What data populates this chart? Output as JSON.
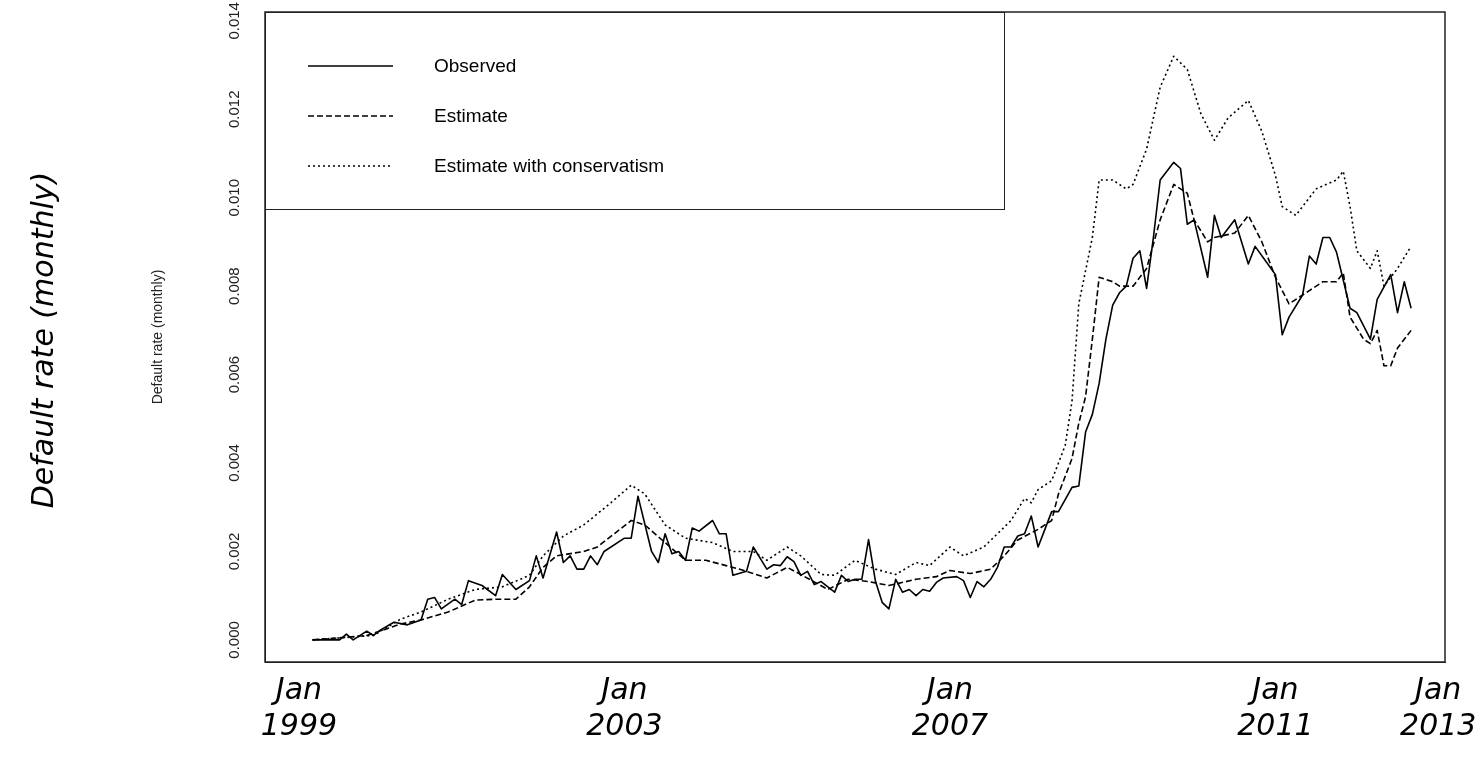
{
  "chart_data": {
    "type": "line",
    "ylabel": "Default rate (monthly)",
    "annotations": [
      "Default rate (monthly)"
    ],
    "xlim": [
      "1998-08",
      "2013-02"
    ],
    "xticks": [
      {
        "value": "1999-01",
        "label": "Jan 1999"
      },
      {
        "value": "2003-01",
        "label": "Jan 2003"
      },
      {
        "value": "2007-01",
        "label": "Jan 2007"
      },
      {
        "value": "2011-01",
        "label": "Jan 2011"
      },
      {
        "value": "2013-01",
        "label": "Jan 2013"
      }
    ],
    "ylim": [
      -0.0005,
      0.0142
    ],
    "yticks": [
      {
        "value": 0,
        "label": "0.000"
      },
      {
        "value": 0.002,
        "label": "0.002"
      },
      {
        "value": 0.004,
        "label": "0.004"
      },
      {
        "value": 0.006,
        "label": "0.006"
      },
      {
        "value": 0.008,
        "label": "0.008"
      },
      {
        "value": 0.01,
        "label": "0.010"
      },
      {
        "value": 0.012,
        "label": "0.012"
      },
      {
        "value": 0.014,
        "label": "0.014"
      }
    ],
    "grid": false,
    "legend": "top left",
    "series": [
      {
        "name": "Observed",
        "color": "#000000",
        "line_style": "solid",
        "x": [
          "1999-03",
          "1999-07",
          "1999-08",
          "1999-09",
          "1999-11",
          "1999-12",
          "2000-01",
          "2000-03",
          "2000-05",
          "2000-07",
          "2000-08",
          "2000-09",
          "2000-10",
          "2000-12",
          "2001-01",
          "2001-02",
          "2001-04",
          "2001-06",
          "2001-07",
          "2001-09",
          "2001-11",
          "2001-12",
          "2002-01",
          "2002-03",
          "2002-04",
          "2002-05",
          "2002-06",
          "2002-07",
          "2002-08",
          "2002-09",
          "2002-10",
          "2003-01",
          "2003-02",
          "2003-03",
          "2003-05",
          "2003-06",
          "2003-07",
          "2003-08",
          "2003-09",
          "2003-10",
          "2003-11",
          "2003-12",
          "2004-02",
          "2004-03",
          "2004-04",
          "2004-05",
          "2004-07",
          "2004-08",
          "2004-10",
          "2004-11",
          "2004-12",
          "2005-01",
          "2005-02",
          "2005-03",
          "2005-04",
          "2005-05",
          "2005-06",
          "2005-08",
          "2005-09",
          "2005-10",
          "2005-11",
          "2005-12",
          "2006-01",
          "2006-02",
          "2006-03",
          "2006-04",
          "2006-05",
          "2006-06",
          "2006-07",
          "2006-08",
          "2006-09",
          "2006-10",
          "2006-11",
          "2006-12",
          "2007-02",
          "2007-03",
          "2007-04",
          "2007-05",
          "2007-06",
          "2007-07",
          "2007-08",
          "2007-09",
          "2007-10",
          "2007-11",
          "2007-12",
          "2008-01",
          "2008-02",
          "2008-03",
          "2008-04",
          "2008-05",
          "2008-07",
          "2008-08",
          "2008-09",
          "2008-10",
          "2008-11",
          "2008-12",
          "2009-01",
          "2009-02",
          "2009-03",
          "2009-04",
          "2009-05",
          "2009-06",
          "2009-07",
          "2009-08",
          "2009-10",
          "2009-11",
          "2009-12",
          "2010-01",
          "2010-03",
          "2010-04",
          "2010-05",
          "2010-07",
          "2010-09",
          "2010-10",
          "2011-01",
          "2011-02",
          "2011-03",
          "2011-05",
          "2011-06",
          "2011-07",
          "2011-08",
          "2011-09",
          "2011-10",
          "2011-12",
          "2012-01",
          "2012-03",
          "2012-04",
          "2012-06",
          "2012-07",
          "2012-08",
          "2012-09"
        ],
        "values": [
          0,
          0,
          0.00013,
          0,
          0.0002,
          0.0001,
          0.00022,
          0.0004,
          0.00034,
          0.00045,
          0.00092,
          0.00096,
          0.0007,
          0.00092,
          0.0008,
          0.00134,
          0.00123,
          0.001,
          0.00148,
          0.00114,
          0.00134,
          0.0019,
          0.0014,
          0.00244,
          0.00175,
          0.0019,
          0.0016,
          0.0016,
          0.0019,
          0.0017,
          0.002,
          0.0023,
          0.0023,
          0.00325,
          0.002,
          0.00175,
          0.0024,
          0.00195,
          0.002,
          0.0018,
          0.00253,
          0.00246,
          0.0027,
          0.0024,
          0.0024,
          0.00146,
          0.00155,
          0.0021,
          0.0016,
          0.0017,
          0.00168,
          0.00188,
          0.00177,
          0.00146,
          0.00155,
          0.00125,
          0.00132,
          0.00108,
          0.00146,
          0.00132,
          0.00137,
          0.00137,
          0.00227,
          0.00134,
          0.00085,
          0.0007,
          0.00137,
          0.00108,
          0.00114,
          0.001,
          0.00114,
          0.0011,
          0.0013,
          0.0014,
          0.00143,
          0.00134,
          0.00096,
          0.00132,
          0.0012,
          0.00137,
          0.00164,
          0.0021,
          0.0021,
          0.00235,
          0.0024,
          0.0028,
          0.0021,
          0.0025,
          0.0029,
          0.0029,
          0.00345,
          0.00348,
          0.0047,
          0.0051,
          0.0058,
          0.0068,
          0.00757,
          0.00785,
          0.008,
          0.00863,
          0.0088,
          0.00795,
          0.0091,
          0.0104,
          0.0108,
          0.01066,
          0.0094,
          0.0095,
          0.0082,
          0.0096,
          0.0091,
          0.0095,
          0.0085,
          0.0089,
          0.00826,
          0.0069,
          0.0073,
          0.0078,
          0.00868,
          0.0085,
          0.0091,
          0.0091,
          0.00877,
          0.0075,
          0.0074,
          0.0068,
          0.0077,
          0.00826,
          0.0074,
          0.0081,
          0.0075
        ]
      },
      {
        "name": "Estimate",
        "color": "#000000",
        "line_style": "dashed",
        "x": [
          "1999-03",
          "1999-11",
          "2000-01",
          "2000-04",
          "2000-07",
          "2000-11",
          "2001-03",
          "2001-06",
          "2001-09",
          "2001-11",
          "2002-01",
          "2002-03",
          "2002-07",
          "2002-09",
          "2002-12",
          "2003-02",
          "2003-04",
          "2003-07",
          "2003-10",
          "2004-01",
          "2004-04",
          "2004-06",
          "2004-10",
          "2005-01",
          "2005-03",
          "2005-07",
          "2005-10",
          "2006-01",
          "2006-04",
          "2006-08",
          "2006-11",
          "2007-01",
          "2007-04",
          "2007-07",
          "2007-09",
          "2007-11",
          "2008-02",
          "2008-04",
          "2008-05",
          "2008-07",
          "2008-08",
          "2008-09",
          "2008-10",
          "2008-11",
          "2009-01",
          "2009-02",
          "2009-04",
          "2009-06",
          "2009-08",
          "2009-10",
          "2009-12",
          "2010-01",
          "2010-03",
          "2010-04",
          "2010-07",
          "2010-09",
          "2010-11",
          "2011-01",
          "2011-03",
          "2011-05",
          "2011-06",
          "2011-08",
          "2011-10",
          "2011-11",
          "2011-12",
          "2012-02",
          "2012-03",
          "2012-04",
          "2012-05",
          "2012-06",
          "2012-07",
          "2012-09"
        ],
        "values": [
          0,
          0.0001,
          0.0002,
          0.00036,
          0.00045,
          0.00063,
          0.0009,
          0.00092,
          0.00092,
          0.0012,
          0.00164,
          0.0019,
          0.002,
          0.0021,
          0.00246,
          0.0027,
          0.0026,
          0.0022,
          0.0018,
          0.0018,
          0.00168,
          0.0016,
          0.0014,
          0.00164,
          0.00148,
          0.00114,
          0.00137,
          0.00132,
          0.00123,
          0.00137,
          0.00143,
          0.00157,
          0.0015,
          0.0016,
          0.0019,
          0.00226,
          0.0025,
          0.0027,
          0.0033,
          0.0041,
          0.0049,
          0.0055,
          0.0068,
          0.0082,
          0.0081,
          0.008,
          0.008,
          0.0084,
          0.0095,
          0.0103,
          0.0101,
          0.0095,
          0.009,
          0.0091,
          0.0092,
          0.0096,
          0.009,
          0.0082,
          0.0076,
          0.0078,
          0.0079,
          0.0081,
          0.0081,
          0.0083,
          0.0073,
          0.0068,
          0.0067,
          0.007,
          0.0062,
          0.0062,
          0.0066,
          0.007
        ]
      },
      {
        "name": "Estimate with conservatism",
        "color": "#000000",
        "line_style": "dotted",
        "x": [
          "1999-03",
          "1999-12",
          "2000-04",
          "2000-07",
          "2000-11",
          "2001-03",
          "2001-07",
          "2001-11",
          "2002-01",
          "2002-04",
          "2002-07",
          "2002-11",
          "2003-02",
          "2003-04",
          "2003-07",
          "2003-10",
          "2004-02",
          "2004-05",
          "2004-08",
          "2004-10",
          "2005-01",
          "2005-03",
          "2005-06",
          "2005-08",
          "2005-11",
          "2006-02",
          "2006-05",
          "2006-08",
          "2006-10",
          "2007-01",
          "2007-03",
          "2007-06",
          "2007-10",
          "2007-12",
          "2008-01",
          "2008-02",
          "2008-04",
          "2008-06",
          "2008-07",
          "2008-08",
          "2008-10",
          "2008-11",
          "2009-01",
          "2009-03",
          "2009-04",
          "2009-06",
          "2009-08",
          "2009-10",
          "2009-12",
          "2010-02",
          "2010-04",
          "2010-06",
          "2010-09",
          "2010-11",
          "2011-01",
          "2011-02",
          "2011-04",
          "2011-07",
          "2011-10",
          "2011-11",
          "2011-12",
          "2012-01",
          "2012-03",
          "2012-04",
          "2012-05",
          "2012-07",
          "2012-09"
        ],
        "values": [
          0,
          0.0001,
          0.00047,
          0.00063,
          0.00092,
          0.00114,
          0.0012,
          0.00146,
          0.0019,
          0.00235,
          0.0026,
          0.0031,
          0.0035,
          0.0033,
          0.0026,
          0.0023,
          0.0022,
          0.002,
          0.002,
          0.0018,
          0.0021,
          0.0019,
          0.00148,
          0.00146,
          0.0018,
          0.0016,
          0.00148,
          0.00175,
          0.00168,
          0.0021,
          0.0019,
          0.0021,
          0.0027,
          0.0032,
          0.0031,
          0.0034,
          0.0036,
          0.0044,
          0.0054,
          0.0076,
          0.0091,
          0.0104,
          0.0104,
          0.0102,
          0.0103,
          0.0111,
          0.0125,
          0.0132,
          0.0129,
          0.0119,
          0.0113,
          0.0118,
          0.0122,
          0.0115,
          0.0105,
          0.0098,
          0.0096,
          0.0102,
          0.0104,
          0.0106,
          0.0098,
          0.0088,
          0.0084,
          0.0088,
          0.008,
          0.0084,
          0.0089
        ]
      }
    ]
  }
}
